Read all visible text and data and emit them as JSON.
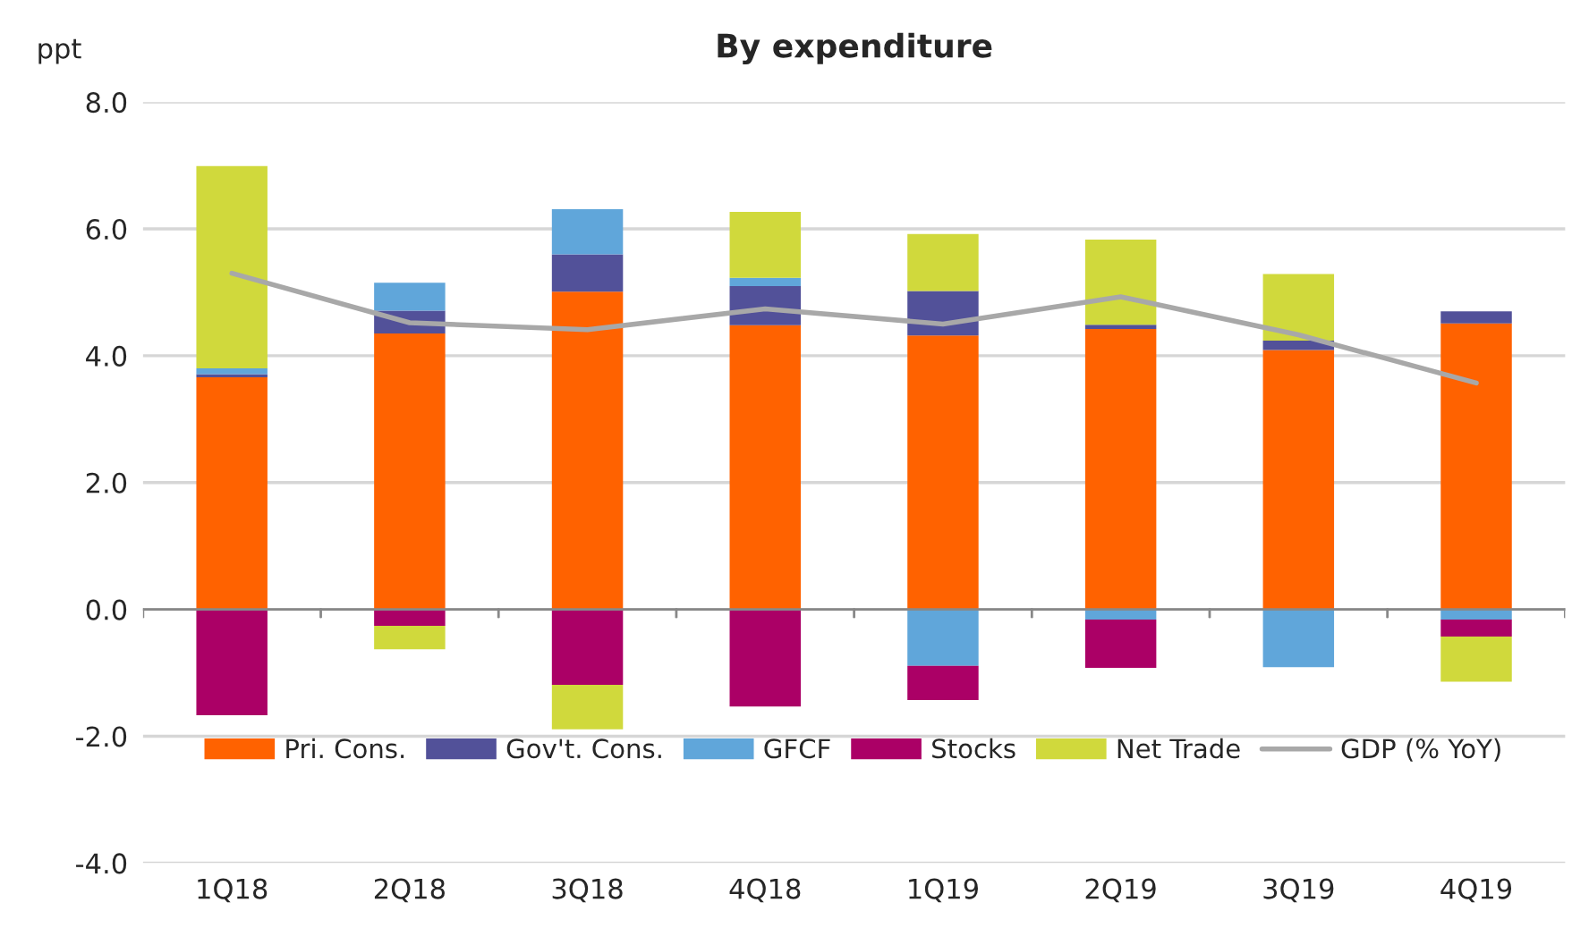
{
  "chart_data": {
    "type": "bar",
    "title": "By expenditure",
    "ylabel": "ppt",
    "stacked": true,
    "categories": [
      "1Q18",
      "2Q18",
      "3Q18",
      "4Q18",
      "1Q19",
      "2Q19",
      "3Q19",
      "4Q19"
    ],
    "series": [
      {
        "name": "Pri. Cons.",
        "color": "#ff6200",
        "values": [
          3.66,
          4.35,
          5.01,
          4.48,
          4.32,
          4.42,
          4.09,
          4.51
        ]
      },
      {
        "name": "Gov't. Cons.",
        "color": "#525199",
        "values": [
          0.05,
          0.36,
          0.59,
          0.62,
          0.7,
          0.07,
          0.15,
          0.19
        ]
      },
      {
        "name": "GFCF",
        "color": "#60a6da",
        "values": [
          0.09,
          0.44,
          0.71,
          0.13,
          -0.89,
          -0.16,
          -0.91,
          -0.16
        ]
      },
      {
        "name": "Stocks",
        "color": "#ab0066",
        "values": [
          -1.67,
          -0.26,
          -1.19,
          -1.53,
          -0.54,
          -0.76,
          0,
          -0.27
        ]
      },
      {
        "name": "Net Trade",
        "color": "#d0d93c",
        "values": [
          3.19,
          -0.37,
          -0.7,
          1.04,
          0.9,
          1.34,
          1.05,
          -0.71
        ]
      },
      {
        "name": "GDP (% YoY)",
        "type": "line",
        "color": "#a8a8a8",
        "values": [
          5.3,
          4.52,
          4.41,
          4.74,
          4.5,
          4.93,
          4.33,
          3.57
        ]
      }
    ],
    "ylim": [
      -4,
      8
    ],
    "yticks": [
      {
        "value": -4,
        "label": "-4.0"
      },
      {
        "value": -2,
        "label": "-2.0"
      },
      {
        "value": 0,
        "label": "0.0"
      },
      {
        "value": 2,
        "label": "2.0"
      },
      {
        "value": 4,
        "label": "4.0"
      },
      {
        "value": 6,
        "label": "6.0"
      },
      {
        "value": 8,
        "label": "8.0"
      }
    ],
    "grid": "y",
    "legend": "bottom"
  }
}
